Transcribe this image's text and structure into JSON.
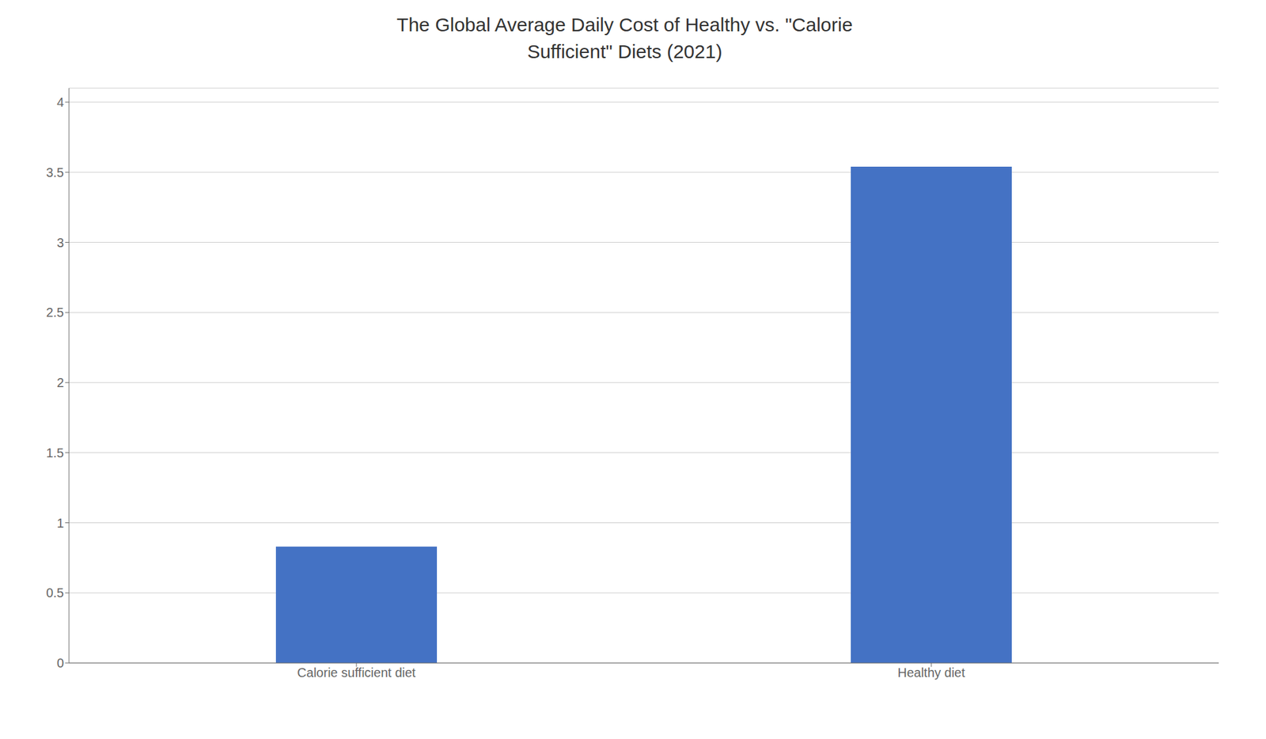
{
  "chart_data": {
    "type": "bar",
    "title": "The Global Average Daily Cost of Healthy vs. \"Calorie\nSufficient\" Diets (2021)",
    "categories": [
      "Calorie sufficient diet",
      "Healthy diet"
    ],
    "values": [
      0.83,
      3.54
    ],
    "color": "#4472C4",
    "ylim": [
      0,
      4.1
    ],
    "yticks": [
      0,
      0.5,
      1,
      1.5,
      2,
      2.5,
      3,
      3.5,
      4
    ],
    "grid": true
  }
}
